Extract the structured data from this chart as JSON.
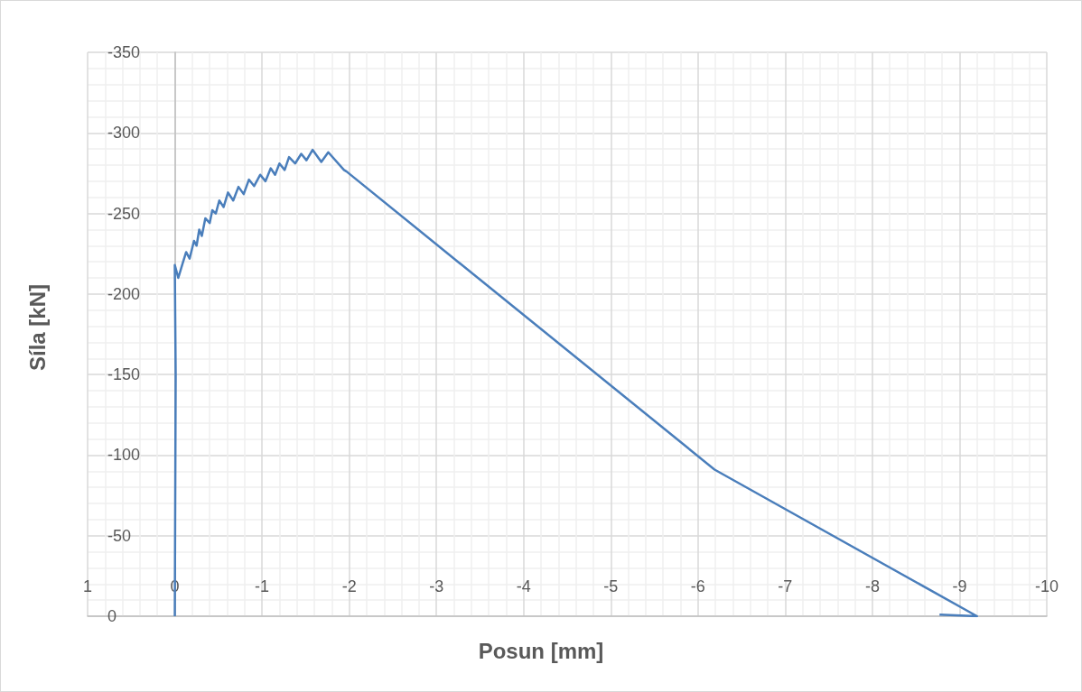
{
  "chart_data": {
    "type": "line",
    "xlabel": "Posun [mm]",
    "ylabel": "Síla [kN]",
    "xlim": [
      1,
      -10
    ],
    "xticks": [
      1,
      0,
      -1,
      -2,
      -3,
      -4,
      -5,
      -6,
      -7,
      -8,
      -9,
      -10
    ],
    "ylim": [
      0,
      -350
    ],
    "yticks": [
      0,
      -50,
      -100,
      -150,
      -200,
      -250,
      -300,
      -350
    ],
    "grid": true,
    "marker": "none",
    "line_style": "solid",
    "series": [
      {
        "color": "#4a7ebb",
        "x": [
          0,
          -0.01,
          0,
          -0.04,
          -0.09,
          -0.13,
          -0.17,
          -0.22,
          -0.25,
          -0.28,
          -0.31,
          -0.35,
          -0.4,
          -0.43,
          -0.47,
          -0.51,
          -0.56,
          -0.61,
          -0.67,
          -0.73,
          -0.79,
          -0.85,
          -0.91,
          -0.98,
          -1.04,
          -1.1,
          -1.15,
          -1.2,
          -1.26,
          -1.31,
          -1.38,
          -1.45,
          -1.51,
          -1.58,
          -1.68,
          -1.76,
          -1.94,
          -1.97,
          -6.19,
          -9.2,
          -8.77
        ],
        "values": [
          0,
          -150,
          -218,
          -210,
          -219,
          -226,
          -222,
          -233,
          -230,
          -240,
          -236,
          -247,
          -244,
          -252,
          -250,
          -258,
          -254,
          -263,
          -258,
          -266.5,
          -262,
          -271,
          -267,
          -274,
          -270,
          -278,
          -274,
          -281,
          -277,
          -285,
          -281,
          -287,
          -283,
          -289.5,
          -282,
          -288,
          -277,
          -276,
          -91,
          0,
          -1
        ]
      }
    ]
  }
}
